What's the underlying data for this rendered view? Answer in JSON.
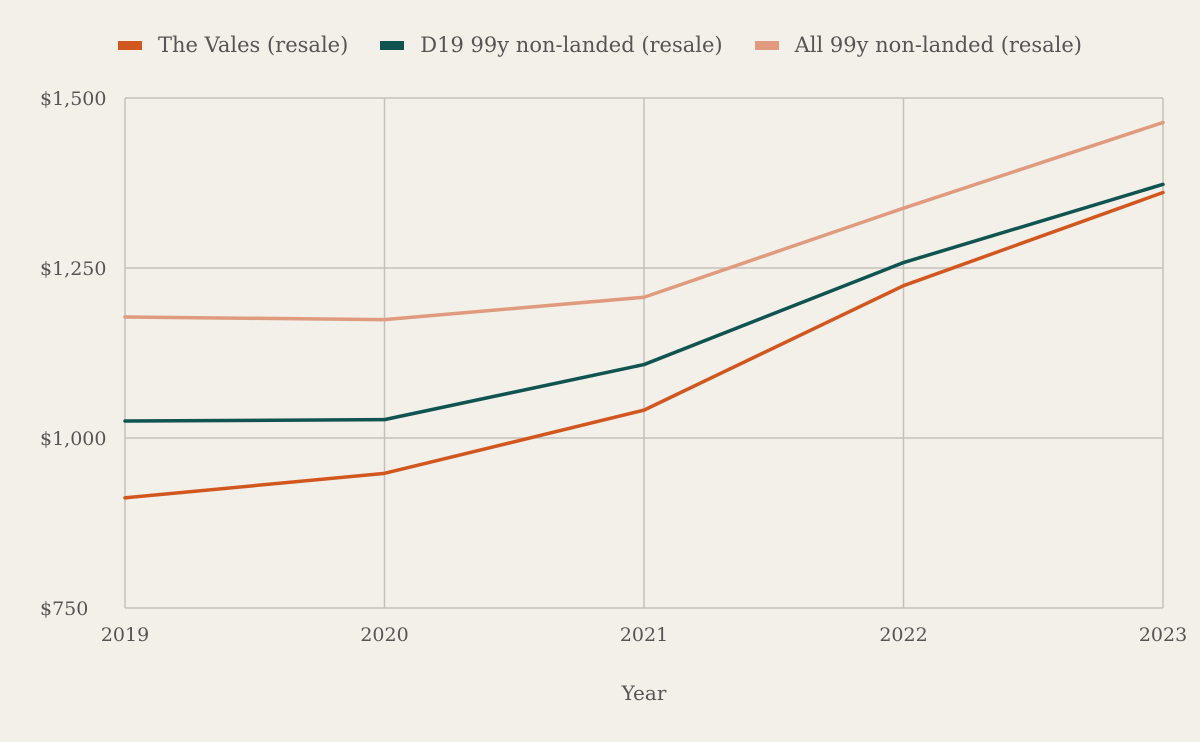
{
  "chart_data": {
    "type": "line",
    "title": "",
    "xlabel": "Year",
    "ylabel": "",
    "x": [
      2019,
      2020,
      2021,
      2022,
      2023
    ],
    "x_tick_labels": [
      "2019",
      "2020",
      "2021",
      "2022",
      "2023"
    ],
    "y_ticks": [
      750,
      1000,
      1250,
      1500
    ],
    "y_tick_labels": [
      "$750",
      "$1,000",
      "$1,250",
      "$1,500"
    ],
    "ylim": [
      750,
      1500
    ],
    "grid": true,
    "legend_position": "top-left",
    "series": [
      {
        "name": "The Vales (resale)",
        "color": "#d2571f",
        "values": [
          912,
          948,
          1041,
          1224,
          1361
        ]
      },
      {
        "name": "D19 99y non-landed (resale)",
        "color": "#0f5450",
        "values": [
          1025,
          1027,
          1108,
          1258,
          1373
        ]
      },
      {
        "name": "All 99y non-landed (resale)",
        "color": "#e09b7e",
        "values": [
          1178,
          1174,
          1207,
          1338,
          1464
        ]
      }
    ]
  }
}
